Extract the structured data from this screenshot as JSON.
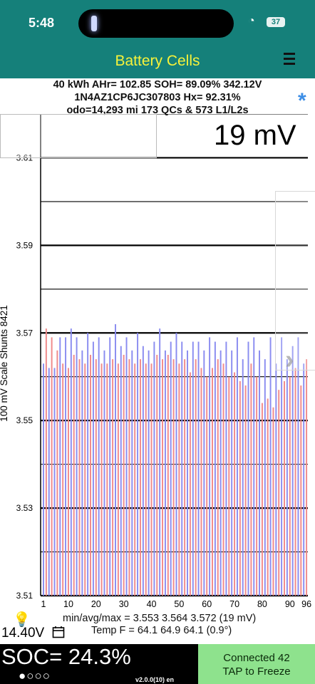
{
  "status": {
    "time": "5:48",
    "battery": "37"
  },
  "nav": {
    "title": "Battery Cells"
  },
  "info": {
    "line1": "40 kWh  AHr= 102.85  SOH= 89.09%   342.12V",
    "line2": "1N4AZ1CP6JC307803   Hx= 92.31%",
    "line3": "odo=14,293 mi 173 QCs & 573 L1/L2s"
  },
  "scale_label": "19 mV",
  "y_axis_label": "100 mV Scale    Shunts 8421",
  "colors": {
    "red": "#f08a8a",
    "blue": "#8a8cf0",
    "accent": "#15807a",
    "title": "#f7f23a",
    "connect_bg": "#8ee28d"
  },
  "chart_data": {
    "type": "bar",
    "ylim": [
      3.51,
      3.62
    ],
    "ytick_labels": [
      "3.61",
      "3.59",
      "3.57",
      "3.55",
      "3.53",
      "3.51"
    ],
    "xtick_labels": [
      "1",
      "10",
      "20",
      "30",
      "40",
      "50",
      "60",
      "70",
      "80",
      "90",
      "96"
    ],
    "cells": [
      3.563,
      3.571,
      3.562,
      3.569,
      3.562,
      3.566,
      3.569,
      3.563,
      3.569,
      3.562,
      3.571,
      3.565,
      3.569,
      3.564,
      3.566,
      3.563,
      3.57,
      3.565,
      3.568,
      3.564,
      3.569,
      3.563,
      3.566,
      3.563,
      3.569,
      3.564,
      3.572,
      3.563,
      3.567,
      3.565,
      3.569,
      3.564,
      3.566,
      3.563,
      3.57,
      3.564,
      3.567,
      3.563,
      3.566,
      3.563,
      3.568,
      3.565,
      3.571,
      3.564,
      3.566,
      3.565,
      3.568,
      3.564,
      3.57,
      3.563,
      3.568,
      3.564,
      3.566,
      3.561,
      3.568,
      3.564,
      3.568,
      3.562,
      3.566,
      3.56,
      3.569,
      3.562,
      3.568,
      3.564,
      3.566,
      3.563,
      3.568,
      3.56,
      3.566,
      3.561,
      3.569,
      3.559,
      3.564,
      3.558,
      3.568,
      3.563,
      3.569,
      3.56,
      3.566,
      3.554,
      3.564,
      3.555,
      3.569,
      3.553,
      3.563,
      3.557,
      3.569,
      3.559,
      3.564,
      3.56,
      3.567,
      3.562,
      3.569,
      3.558,
      3.563,
      3.564
    ]
  },
  "bottom": {
    "voltage": "14.40V",
    "stats_line1": "min/avg/max = 3.553 3.564 3.572  (19 mV)",
    "stats_line2": "Temp F = 64.1  64.9  64.1  (0.9°)",
    "soc": "SOC= 24.3%",
    "dots": "●○○○",
    "version": "v2.0.0(10) en",
    "connect_line1": "Connected 42",
    "connect_line2": "TAP to Freeze"
  }
}
